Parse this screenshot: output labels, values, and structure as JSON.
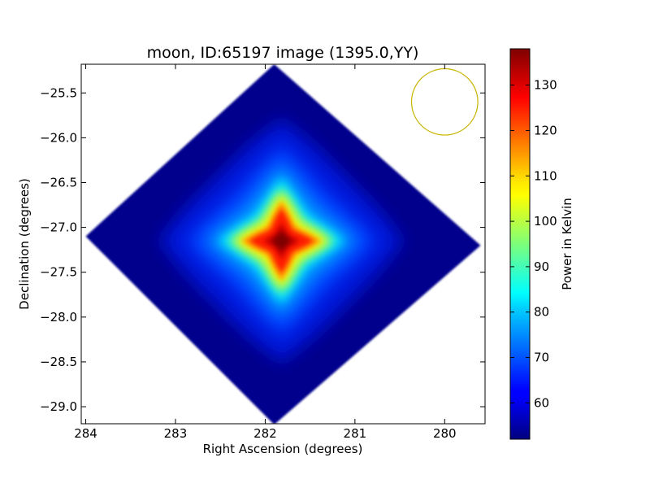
{
  "chart_data": [
    {
      "type": "heatmap",
      "title": "moon, ID:65197 image (1395.0,YY)",
      "xlabel": "Right Ascension (degrees)",
      "ylabel": "Declination (degrees)",
      "xlim": [
        284.05,
        279.55
      ],
      "ylim": [
        -29.19,
        -25.18
      ],
      "x_axis_inverted": true,
      "xticks": [
        284,
        283,
        282,
        281,
        280
      ],
      "xtick_labels": [
        "284",
        "283",
        "282",
        "281",
        "280"
      ],
      "yticks": [
        -25.5,
        -26.0,
        -26.5,
        -27.0,
        -27.5,
        -28.0,
        -28.5,
        -29.0
      ],
      "ytick_labels": [
        "−25.5",
        "−26.0",
        "−26.5",
        "−27.0",
        "−27.5",
        "−28.0",
        "−28.5",
        "−29.0"
      ],
      "image_footprint_corners": [
        {
          "ra": 281.9,
          "dec": -25.18
        },
        {
          "ra": 279.6,
          "dec": -27.2
        },
        {
          "ra": 281.9,
          "dec": -29.2
        },
        {
          "ra": 284.0,
          "dec": -27.1
        }
      ],
      "background_level": 55,
      "source": {
        "ra": 281.82,
        "dec": -27.15,
        "peak": 137
      },
      "annotations": [
        {
          "type": "circle",
          "center_ra": 280.0,
          "center_dec": -25.6,
          "radius_deg": 0.37,
          "color": "#c8b400"
        }
      ],
      "colorbar": {
        "label": "Power in Kelvin",
        "range": [
          52,
          138
        ],
        "ticks": [
          60,
          70,
          80,
          90,
          100,
          110,
          120,
          130
        ],
        "tick_labels": [
          "60",
          "70",
          "80",
          "90",
          "100",
          "110",
          "120",
          "130"
        ],
        "colormap": "jet"
      },
      "grid": false
    }
  ]
}
